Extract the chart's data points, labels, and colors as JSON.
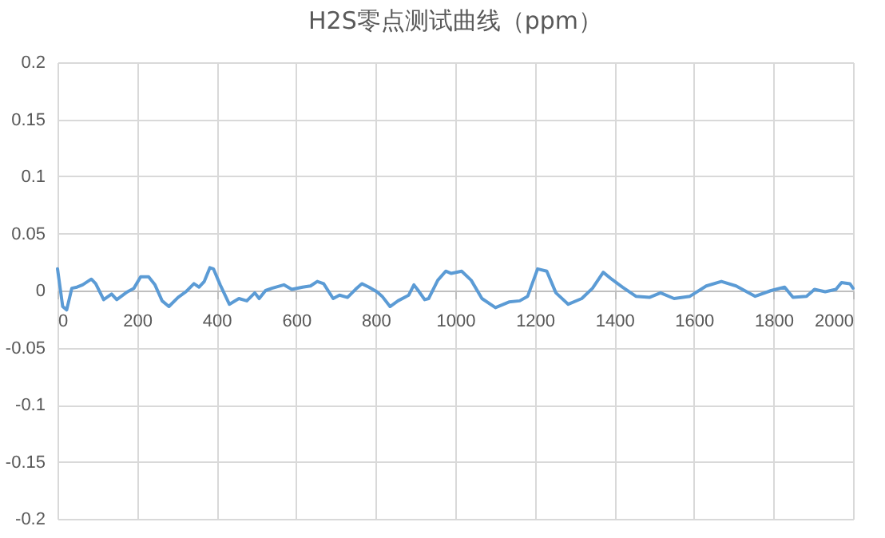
{
  "chart_data": {
    "type": "line",
    "title": "H2S零点测试曲线（ppm）",
    "x": [
      0,
      13,
      23,
      36,
      49,
      63,
      85,
      96,
      116,
      136,
      149,
      176,
      192,
      209,
      229,
      245,
      263,
      280,
      303,
      323,
      343,
      356,
      369,
      383,
      392,
      409,
      432,
      456,
      476,
      496,
      507,
      523,
      539,
      569,
      589,
      616,
      636,
      653,
      669,
      693,
      709,
      729,
      749,
      765,
      783,
      803,
      816,
      836,
      856,
      883,
      896,
      907,
      923,
      933,
      956,
      976,
      990,
      1016,
      1040,
      1067,
      1101,
      1135,
      1162,
      1182,
      1207,
      1230,
      1253,
      1284,
      1318,
      1345,
      1372,
      1393,
      1420,
      1454,
      1488,
      1516,
      1550,
      1590,
      1631,
      1669,
      1706,
      1754,
      1794,
      1828,
      1849,
      1883,
      1903,
      1930,
      1957,
      1971,
      1992,
      2000
    ],
    "series": [
      {
        "color": "#5b9bd5",
        "values": [
          0.019,
          -0.014,
          -0.017,
          0.002,
          0.003,
          0.005,
          0.01,
          0.006,
          -0.008,
          -0.003,
          -0.008,
          -0.001,
          0.002,
          0.012,
          0.012,
          0.005,
          -0.009,
          -0.014,
          -0.006,
          -0.001,
          0.006,
          0.003,
          0.008,
          0.02,
          0.019,
          0.005,
          -0.012,
          -0.007,
          -0.009,
          -0.002,
          -0.007,
          0.0,
          0.002,
          0.005,
          0.001,
          0.003,
          0.004,
          0.008,
          0.006,
          -0.007,
          -0.004,
          -0.006,
          0.001,
          0.006,
          0.003,
          -0.001,
          -0.005,
          -0.014,
          -0.009,
          -0.004,
          0.005,
          0.0,
          -0.008,
          -0.007,
          0.009,
          0.017,
          0.015,
          0.017,
          0.009,
          -0.007,
          -0.015,
          -0.01,
          -0.009,
          -0.005,
          0.019,
          0.017,
          -0.002,
          -0.012,
          -0.007,
          0.002,
          0.016,
          0.01,
          0.003,
          -0.005,
          -0.006,
          -0.002,
          -0.007,
          -0.005,
          0.004,
          0.008,
          0.004,
          -0.005,
          0.0,
          0.003,
          -0.006,
          -0.005,
          0.001,
          -0.001,
          0.001,
          0.007,
          0.006,
          0.002
        ]
      }
    ],
    "xlim": [
      0,
      2000
    ],
    "xticks": [
      0,
      200,
      400,
      600,
      800,
      1000,
      1200,
      1400,
      1600,
      1800,
      2000
    ],
    "ylim": [
      -0.2,
      0.2
    ],
    "yticks": [
      -0.2,
      -0.15,
      -0.1,
      -0.05,
      0,
      0.05,
      0.1,
      0.15,
      0.2
    ],
    "grid": true,
    "marker": "none",
    "line_style": "solid"
  }
}
